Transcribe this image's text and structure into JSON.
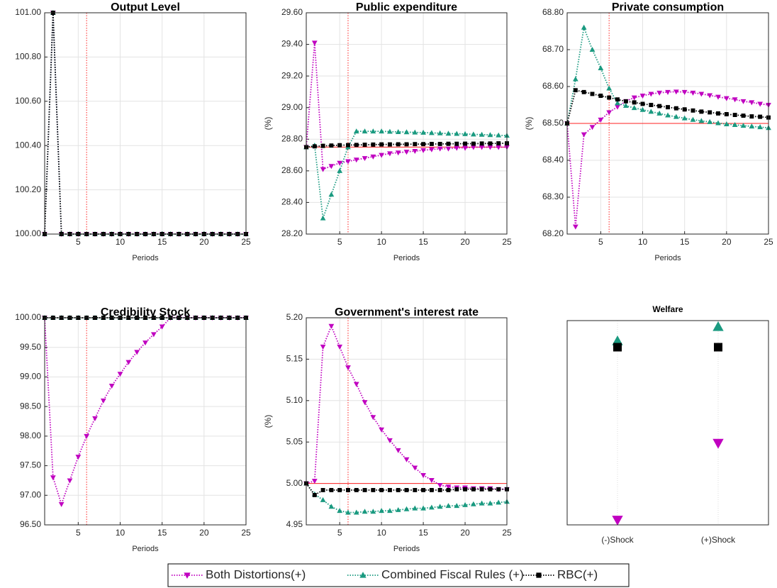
{
  "chart_data": [
    {
      "type": "line",
      "title": "Output Level",
      "xlabel": "Periods",
      "x": [
        1,
        2,
        3,
        4,
        5,
        6,
        7,
        8,
        9,
        10,
        11,
        12,
        13,
        14,
        15,
        16,
        17,
        18,
        19,
        20,
        21,
        22,
        23,
        24,
        25
      ],
      "xlim": [
        1,
        25
      ],
      "xticks": [
        5,
        10,
        15,
        20,
        25
      ],
      "ylim": [
        100,
        101
      ],
      "yticks": [
        {
          "value": 100,
          "label": "100.00"
        },
        {
          "value": 100.2,
          "label": "100.20"
        },
        {
          "value": 100.4,
          "label": "100.40"
        },
        {
          "value": 100.6,
          "label": "100.60"
        },
        {
          "value": 100.8,
          "label": "100.80"
        },
        {
          "value": 101,
          "label": "101.00"
        }
      ],
      "hline": 100,
      "vline": 6,
      "grid": true,
      "series": [
        {
          "name": "Both Distortions(+)",
          "color": "#c000c0",
          "marker": "v",
          "values": [
            100,
            101,
            100,
            100,
            100,
            100,
            100,
            100,
            100,
            100,
            100,
            100,
            100,
            100,
            100,
            100,
            100,
            100,
            100,
            100,
            100,
            100,
            100,
            100,
            100
          ]
        },
        {
          "name": "Combined Fiscal Rules (+)",
          "color": "#1a9a80",
          "marker": "^",
          "values": [
            100,
            101,
            100,
            100,
            100,
            100,
            100,
            100,
            100,
            100,
            100,
            100,
            100,
            100,
            100,
            100,
            100,
            100,
            100,
            100,
            100,
            100,
            100,
            100,
            100
          ]
        },
        {
          "name": "RBC(+)",
          "color": "#000000",
          "marker": "s",
          "values": [
            100,
            101,
            100,
            100,
            100,
            100,
            100,
            100,
            100,
            100,
            100,
            100,
            100,
            100,
            100,
            100,
            100,
            100,
            100,
            100,
            100,
            100,
            100,
            100,
            100
          ]
        }
      ]
    },
    {
      "type": "line",
      "title": "Public expenditure",
      "xlabel": "Periods",
      "ylabel": "(%)",
      "x": [
        1,
        2,
        3,
        4,
        5,
        6,
        7,
        8,
        9,
        10,
        11,
        12,
        13,
        14,
        15,
        16,
        17,
        18,
        19,
        20,
        21,
        22,
        23,
        24,
        25
      ],
      "xlim": [
        1,
        25
      ],
      "xticks": [
        5,
        10,
        15,
        20,
        25
      ],
      "ylim": [
        28.2,
        29.6
      ],
      "yticks": [
        {
          "value": 28.2,
          "label": "28.20"
        },
        {
          "value": 28.4,
          "label": "28.40"
        },
        {
          "value": 28.6,
          "label": "28.60"
        },
        {
          "value": 28.8,
          "label": "28.80"
        },
        {
          "value": 29,
          "label": "29.00"
        },
        {
          "value": 29.2,
          "label": "29.20"
        },
        {
          "value": 29.4,
          "label": "29.40"
        },
        {
          "value": 29.6,
          "label": "29.60"
        }
      ],
      "hline": 28.75,
      "vline": 6,
      "grid": true,
      "series": [
        {
          "name": "Both Distortions(+)",
          "color": "#c000c0",
          "marker": "v",
          "values": [
            28.75,
            29.41,
            28.61,
            28.63,
            28.65,
            28.66,
            28.67,
            28.68,
            28.69,
            28.7,
            28.71,
            28.715,
            28.72,
            28.725,
            28.73,
            28.735,
            28.74,
            28.74,
            28.745,
            28.745,
            28.75,
            28.75,
            28.75,
            28.75,
            28.75
          ]
        },
        {
          "name": "Combined Fiscal Rules (+)",
          "color": "#1a9a80",
          "marker": "^",
          "values": [
            28.75,
            28.76,
            28.3,
            28.45,
            28.6,
            28.75,
            28.85,
            28.85,
            28.85,
            28.85,
            28.848,
            28.846,
            28.845,
            28.843,
            28.842,
            28.84,
            28.838,
            28.836,
            28.835,
            28.833,
            28.831,
            28.829,
            28.827,
            28.825,
            28.823
          ]
        },
        {
          "name": "RBC(+)",
          "color": "#000000",
          "marker": "s",
          "values": [
            28.75,
            28.755,
            28.758,
            28.76,
            28.762,
            28.763,
            28.764,
            28.765,
            28.766,
            28.767,
            28.767,
            28.768,
            28.768,
            28.769,
            28.769,
            28.77,
            28.77,
            28.771,
            28.771,
            28.772,
            28.772,
            28.773,
            28.773,
            28.774,
            28.774
          ]
        }
      ]
    },
    {
      "type": "line",
      "title": "Private consumption",
      "xlabel": "Periods",
      "ylabel": "(%)",
      "x": [
        1,
        2,
        3,
        4,
        5,
        6,
        7,
        8,
        9,
        10,
        11,
        12,
        13,
        14,
        15,
        16,
        17,
        18,
        19,
        20,
        21,
        22,
        23,
        24,
        25
      ],
      "xlim": [
        1,
        25
      ],
      "xticks": [
        5,
        10,
        15,
        20,
        25
      ],
      "ylim": [
        68.2,
        68.8
      ],
      "yticks": [
        {
          "value": 68.2,
          "label": "68.20"
        },
        {
          "value": 68.3,
          "label": "68.30"
        },
        {
          "value": 68.4,
          "label": "68.40"
        },
        {
          "value": 68.5,
          "label": "68.50"
        },
        {
          "value": 68.6,
          "label": "68.60"
        },
        {
          "value": 68.7,
          "label": "68.70"
        },
        {
          "value": 68.8,
          "label": "68.80"
        }
      ],
      "hline": 68.5,
      "vline": 6,
      "grid": true,
      "series": [
        {
          "name": "Both Distortions(+)",
          "color": "#c000c0",
          "marker": "v",
          "values": [
            68.5,
            68.22,
            68.47,
            68.49,
            68.51,
            68.53,
            68.545,
            68.56,
            68.57,
            68.575,
            68.58,
            68.583,
            68.585,
            68.586,
            68.585,
            68.583,
            68.58,
            68.576,
            68.572,
            68.568,
            68.565,
            68.56,
            68.557,
            68.553,
            68.55
          ]
        },
        {
          "name": "Combined Fiscal Rules (+)",
          "color": "#1a9a80",
          "marker": "^",
          "values": [
            68.5,
            68.62,
            68.76,
            68.7,
            68.65,
            68.595,
            68.555,
            68.548,
            68.542,
            68.537,
            68.532,
            68.527,
            68.522,
            68.518,
            68.514,
            68.51,
            68.507,
            68.504,
            68.501,
            68.498,
            68.496,
            68.494,
            68.492,
            68.49,
            68.488
          ]
        },
        {
          "name": "RBC(+)",
          "color": "#000000",
          "marker": "s",
          "values": [
            68.5,
            68.59,
            68.585,
            68.58,
            68.575,
            68.57,
            68.565,
            68.56,
            68.557,
            68.553,
            68.55,
            68.547,
            68.544,
            68.541,
            68.538,
            68.535,
            68.532,
            68.53,
            68.527,
            68.525,
            68.523,
            68.521,
            68.519,
            68.518,
            68.516
          ]
        }
      ]
    },
    {
      "type": "line",
      "title": "Credibility Stock",
      "xlabel": "Periods",
      "x": [
        1,
        2,
        3,
        4,
        5,
        6,
        7,
        8,
        9,
        10,
        11,
        12,
        13,
        14,
        15,
        16,
        17,
        18,
        19,
        20,
        21,
        22,
        23,
        24,
        25
      ],
      "xlim": [
        1,
        25
      ],
      "xticks": [
        5,
        10,
        15,
        20,
        25
      ],
      "ylim": [
        96.5,
        100
      ],
      "yticks": [
        {
          "value": 96.5,
          "label": "96.50"
        },
        {
          "value": 97,
          "label": "97.00"
        },
        {
          "value": 97.5,
          "label": "97.50"
        },
        {
          "value": 98,
          "label": "98.00"
        },
        {
          "value": 98.5,
          "label": "98.50"
        },
        {
          "value": 99,
          "label": "99.00"
        },
        {
          "value": 99.5,
          "label": "99.50"
        },
        {
          "value": 100,
          "label": "100.00"
        }
      ],
      "hline": 100,
      "vline": 6,
      "grid": true,
      "series": [
        {
          "name": "Both Distortions(+)",
          "color": "#c000c0",
          "marker": "v",
          "values": [
            100,
            97.3,
            96.85,
            97.25,
            97.65,
            98,
            98.3,
            98.6,
            98.85,
            99.05,
            99.25,
            99.42,
            99.58,
            99.72,
            99.85,
            100,
            100,
            100,
            100,
            100,
            100,
            100,
            100,
            100,
            100
          ]
        },
        {
          "name": "Combined Fiscal Rules (+)",
          "color": "#1a9a80",
          "marker": "^",
          "values": [
            100,
            100,
            100,
            100,
            100,
            100,
            100,
            100,
            100,
            100,
            100,
            100,
            100,
            100,
            100,
            100,
            100,
            100,
            100,
            100,
            100,
            100,
            100,
            100,
            100
          ]
        },
        {
          "name": "RBC(+)",
          "color": "#000000",
          "marker": "s",
          "values": [
            100,
            100,
            100,
            100,
            100,
            100,
            100,
            100,
            100,
            100,
            100,
            100,
            100,
            100,
            100,
            100,
            100,
            100,
            100,
            100,
            100,
            100,
            100,
            100,
            100
          ]
        }
      ]
    },
    {
      "type": "line",
      "title": "Government's interest rate",
      "xlabel": "Periods",
      "ylabel": "(%)",
      "x": [
        1,
        2,
        3,
        4,
        5,
        6,
        7,
        8,
        9,
        10,
        11,
        12,
        13,
        14,
        15,
        16,
        17,
        18,
        19,
        20,
        21,
        22,
        23,
        24,
        25
      ],
      "xlim": [
        1,
        25
      ],
      "xticks": [
        5,
        10,
        15,
        20,
        25
      ],
      "ylim": [
        4.95,
        5.2
      ],
      "yticks": [
        4.95,
        {
          "value": 5,
          "label": "5.00"
        },
        5.05,
        {
          "value": 5.1,
          "label": "5.10"
        },
        5.15,
        {
          "value": 5.2,
          "label": "5.20"
        }
      ],
      "hline": 5,
      "vline": 6,
      "grid": true,
      "series": [
        {
          "name": "Both Distortions(+)",
          "color": "#c000c0",
          "marker": "v",
          "values": [
            5,
            5.003,
            5.165,
            5.19,
            5.165,
            5.14,
            5.12,
            5.098,
            5.08,
            5.065,
            5.052,
            5.04,
            5.029,
            5.019,
            5.01,
            5.004,
            4.998,
            4.996,
            4.995,
            4.995,
            4.994,
            4.994,
            4.994,
            4.993,
            4.993
          ]
        },
        {
          "name": "Combined Fiscal Rules (+)",
          "color": "#1a9a80",
          "marker": "^",
          "values": [
            5,
            4.987,
            4.98,
            4.972,
            4.967,
            4.965,
            4.965,
            4.966,
            4.966,
            4.967,
            4.967,
            4.968,
            4.969,
            4.97,
            4.97,
            4.971,
            4.972,
            4.973,
            4.973,
            4.974,
            4.975,
            4.976,
            4.976,
            4.977,
            4.978
          ]
        },
        {
          "name": "RBC(+)",
          "color": "#000000",
          "marker": "s",
          "values": [
            5,
            4.986,
            4.992,
            4.992,
            4.992,
            4.992,
            4.992,
            4.992,
            4.992,
            4.992,
            4.992,
            4.992,
            4.992,
            4.992,
            4.992,
            4.992,
            4.992,
            4.992,
            4.993,
            4.993,
            4.993,
            4.993,
            4.993,
            4.993,
            4.993
          ]
        }
      ]
    },
    {
      "type": "dot",
      "title": "Welfare",
      "categories": [
        "(-)Shock",
        "(+)Shock"
      ],
      "ylim": [
        0,
        10
      ],
      "series": [
        {
          "name": "Both Distortions(+)",
          "color": "#c000c0",
          "marker": "v",
          "values": [
            0.24,
            4
          ]
        },
        {
          "name": "Combined Fiscal Rules (+)",
          "color": "#1a9a80",
          "marker": "^",
          "values": [
            9,
            9.7
          ]
        },
        {
          "name": "RBC(+)",
          "color": "#000000",
          "marker": "s",
          "values": [
            8.7,
            8.7
          ]
        }
      ]
    }
  ]
}
